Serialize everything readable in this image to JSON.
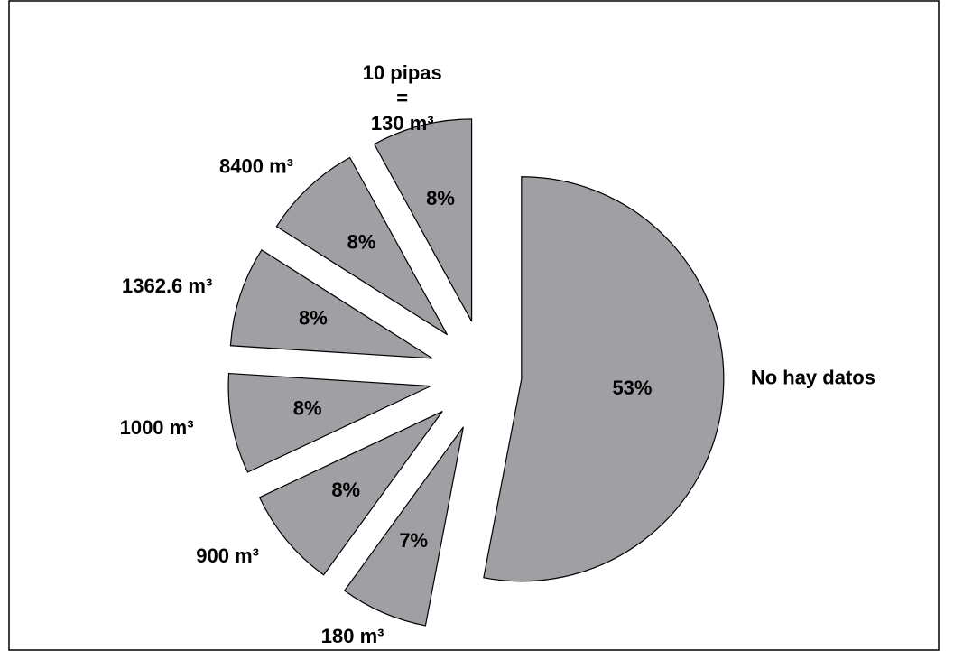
{
  "chart_data": {
    "type": "pie",
    "categories": [
      "No hay datos",
      "180 m³",
      "900 m³",
      "1000 m³",
      "1362.6 m³",
      "8400 m³",
      "10 pipas = 130 m³"
    ],
    "values": [
      53,
      7,
      8,
      8,
      8,
      8,
      8
    ],
    "value_labels": [
      "53%",
      "7%",
      "8%",
      "8%",
      "8%",
      "8%",
      "8%"
    ],
    "color": "#a0a0a4"
  }
}
